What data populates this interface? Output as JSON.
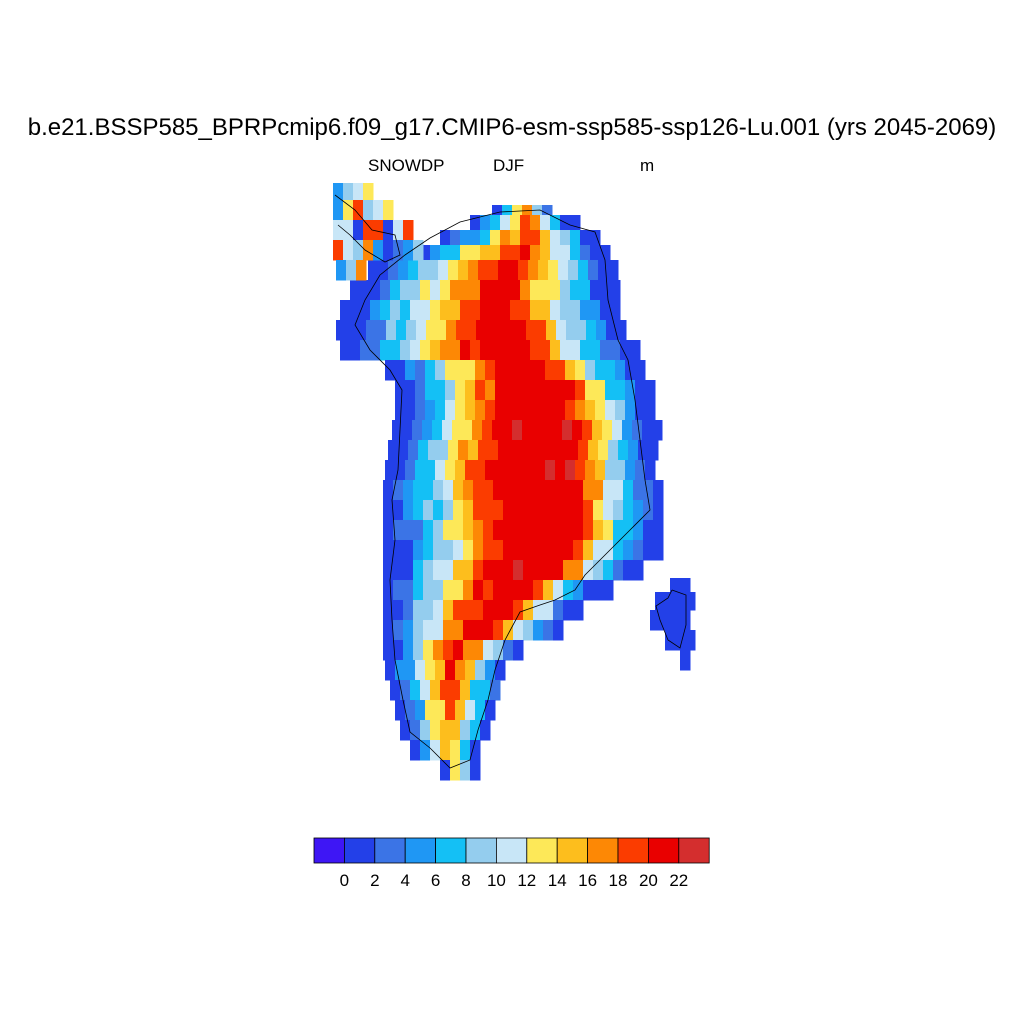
{
  "figure": {
    "title": "b.e21.BSSP585_BPRPcmip6.f09_g17.CMIP6-esm-ssp585-ssp126-Lu.001 (yrs 2045-2069)",
    "variable": "SNOWDP",
    "season": "DJF",
    "units": "m"
  },
  "colorbar": {
    "colors": [
      "#3e16f5",
      "#2340e8",
      "#3b74e6",
      "#1f97f4",
      "#14c0f5",
      "#94cdee",
      "#c8e6f7",
      "#fde858",
      "#fdbe1d",
      "#fd8805",
      "#fb3c00",
      "#e90000",
      "#d42e2e"
    ],
    "labels": [
      "0",
      "2",
      "4",
      "6",
      "8",
      "10",
      "12",
      "14",
      "16",
      "18",
      "20",
      "22"
    ]
  },
  "chart_data": {
    "type": "heatmap",
    "title": "b.e21.BSSP585_BPRPcmip6.f09_g17.CMIP6-esm-ssp585-ssp126-Lu.001 (yrs 2045-2069)",
    "variable": "SNOWDP",
    "season": "DJF",
    "units": "m",
    "levels": [
      0,
      2,
      4,
      6,
      8,
      10,
      12,
      14,
      16,
      18,
      20,
      22
    ],
    "region": "Greenland",
    "pattern": "snow depth highest (>20 m) over the central ice sheet interior, decreasing to <2 m along the coastal margins"
  }
}
